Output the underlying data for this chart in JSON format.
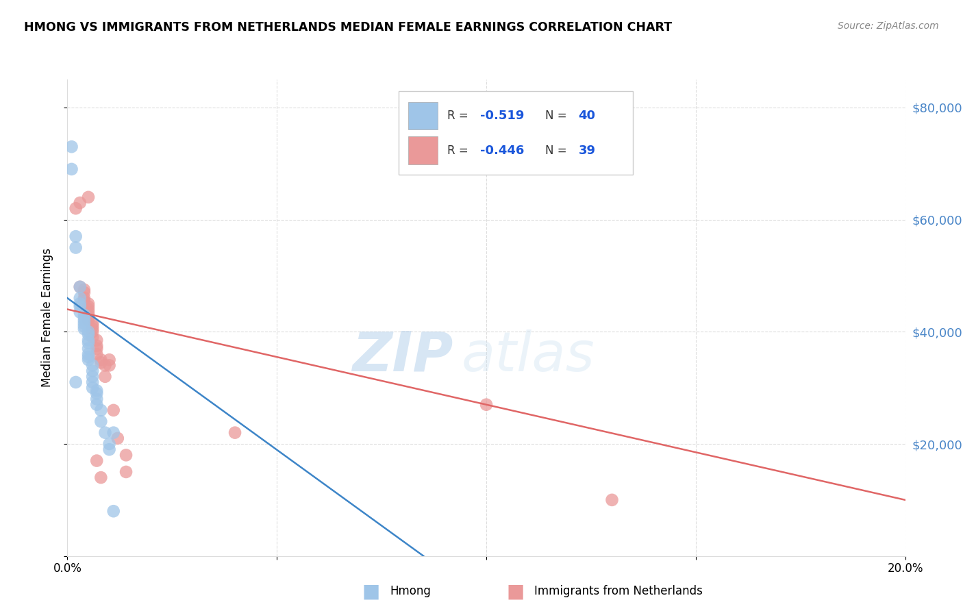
{
  "title": "HMONG VS IMMIGRANTS FROM NETHERLANDS MEDIAN FEMALE EARNINGS CORRELATION CHART",
  "source": "Source: ZipAtlas.com",
  "ylabel": "Median Female Earnings",
  "xlim": [
    0.0,
    0.2
  ],
  "ylim": [
    0,
    85000
  ],
  "yticks": [
    0,
    20000,
    40000,
    60000,
    80000
  ],
  "ytick_labels": [
    "",
    "$20,000",
    "$40,000",
    "$60,000",
    "$80,000"
  ],
  "xtick_vals": [
    0.0,
    0.05,
    0.1,
    0.15,
    0.2
  ],
  "xtick_labels": [
    "0.0%",
    "",
    "",
    "",
    "20.0%"
  ],
  "legend_R1": "-0.519",
  "legend_N1": "40",
  "legend_R2": "-0.446",
  "legend_N2": "39",
  "legend_label1": "Hmong",
  "legend_label2": "Immigrants from Netherlands",
  "blue_color": "#9fc5e8",
  "pink_color": "#ea9999",
  "blue_line_color": "#3d85c8",
  "pink_line_color": "#e06666",
  "watermark_zip": "ZIP",
  "watermark_atlas": "atlas",
  "blue_scatter": [
    [
      0.001,
      69000
    ],
    [
      0.002,
      57000
    ],
    [
      0.002,
      55000
    ],
    [
      0.003,
      48000
    ],
    [
      0.003,
      46000
    ],
    [
      0.003,
      45000
    ],
    [
      0.003,
      44500
    ],
    [
      0.003,
      43500
    ],
    [
      0.004,
      43000
    ],
    [
      0.004,
      42500
    ],
    [
      0.004,
      42000
    ],
    [
      0.004,
      41500
    ],
    [
      0.004,
      41000
    ],
    [
      0.004,
      40500
    ],
    [
      0.005,
      40000
    ],
    [
      0.005,
      39500
    ],
    [
      0.005,
      38500
    ],
    [
      0.005,
      38000
    ],
    [
      0.005,
      37000
    ],
    [
      0.005,
      36000
    ],
    [
      0.005,
      35500
    ],
    [
      0.005,
      35000
    ],
    [
      0.006,
      34000
    ],
    [
      0.006,
      33000
    ],
    [
      0.006,
      32000
    ],
    [
      0.006,
      31000
    ],
    [
      0.006,
      30000
    ],
    [
      0.007,
      29500
    ],
    [
      0.007,
      29000
    ],
    [
      0.007,
      28000
    ],
    [
      0.007,
      27000
    ],
    [
      0.008,
      26000
    ],
    [
      0.008,
      24000
    ],
    [
      0.009,
      22000
    ],
    [
      0.01,
      20000
    ],
    [
      0.01,
      19000
    ],
    [
      0.011,
      22000
    ],
    [
      0.011,
      8000
    ],
    [
      0.001,
      73000
    ],
    [
      0.002,
      31000
    ]
  ],
  "pink_scatter": [
    [
      0.002,
      62000
    ],
    [
      0.003,
      63000
    ],
    [
      0.005,
      64000
    ],
    [
      0.003,
      48000
    ],
    [
      0.004,
      47500
    ],
    [
      0.004,
      47000
    ],
    [
      0.004,
      46000
    ],
    [
      0.004,
      45500
    ],
    [
      0.005,
      45000
    ],
    [
      0.005,
      44500
    ],
    [
      0.005,
      44000
    ],
    [
      0.005,
      43500
    ],
    [
      0.005,
      43000
    ],
    [
      0.005,
      42500
    ],
    [
      0.005,
      42000
    ],
    [
      0.006,
      41500
    ],
    [
      0.006,
      41000
    ],
    [
      0.006,
      40500
    ],
    [
      0.006,
      40000
    ],
    [
      0.006,
      39000
    ],
    [
      0.007,
      38500
    ],
    [
      0.007,
      37500
    ],
    [
      0.007,
      37000
    ],
    [
      0.007,
      36000
    ],
    [
      0.008,
      35000
    ],
    [
      0.008,
      34500
    ],
    [
      0.009,
      34000
    ],
    [
      0.009,
      32000
    ],
    [
      0.01,
      35000
    ],
    [
      0.01,
      34000
    ],
    [
      0.011,
      26000
    ],
    [
      0.012,
      21000
    ],
    [
      0.014,
      18000
    ],
    [
      0.014,
      15000
    ],
    [
      0.04,
      22000
    ],
    [
      0.1,
      27000
    ],
    [
      0.007,
      17000
    ],
    [
      0.008,
      14000
    ],
    [
      0.13,
      10000
    ]
  ],
  "blue_trend_x": [
    0.0,
    0.085
  ],
  "blue_trend_y": [
    46000,
    0
  ],
  "pink_trend_x": [
    0.0,
    0.2
  ],
  "pink_trend_y": [
    44000,
    10000
  ]
}
